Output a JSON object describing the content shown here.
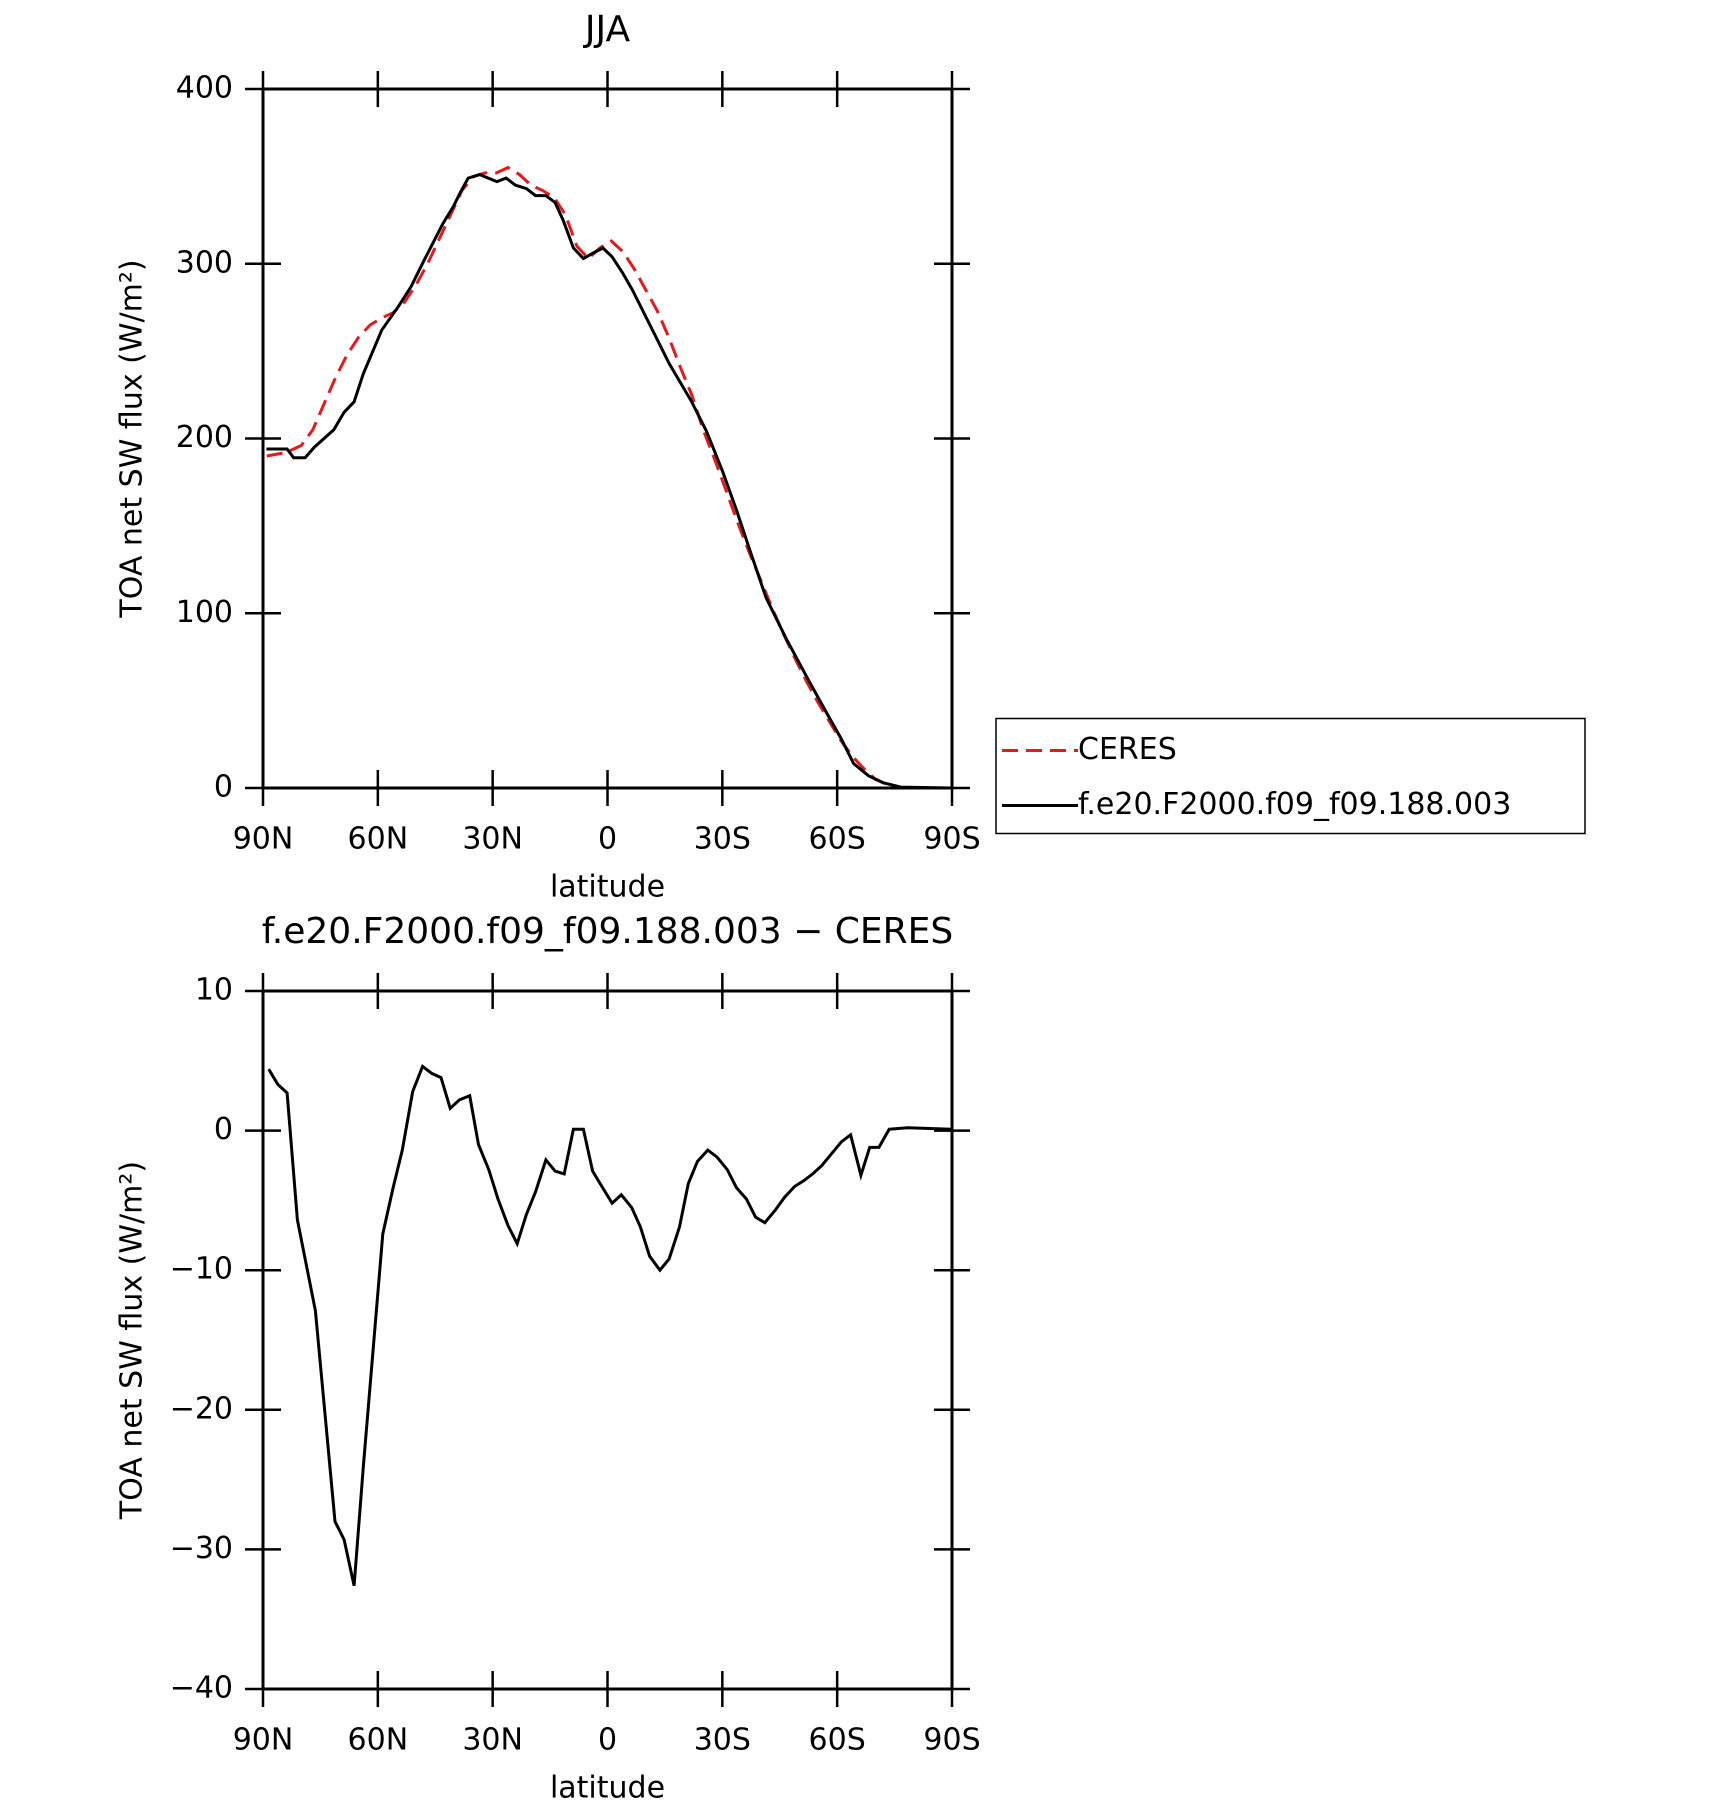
{
  "chart_data": [
    {
      "type": "line",
      "title": "JJA",
      "xlabel": "latitude",
      "ylabel": "TOA net SW flux (W/m²)",
      "xlim": [
        90,
        -90
      ],
      "ylim": [
        0,
        400
      ],
      "xticks": [
        {
          "value": 90,
          "label": "90N"
        },
        {
          "value": 60,
          "label": "60N"
        },
        {
          "value": 30,
          "label": "30N"
        },
        0,
        {
          "value": -30,
          "label": "30S"
        },
        {
          "value": -60,
          "label": "60S"
        },
        {
          "value": -90,
          "label": "90S"
        }
      ],
      "yticks": [
        0,
        100,
        200,
        300,
        400
      ],
      "legend": "right",
      "series": [
        {
          "name": "CERES",
          "color": "#e41a1c",
          "style": "dashed",
          "x": [
            89,
            84,
            80,
            77,
            74,
            71,
            68,
            65,
            62,
            59,
            56,
            53,
            50,
            47,
            44,
            41,
            38,
            35,
            32,
            29,
            26,
            23,
            20,
            17,
            14,
            11,
            8,
            5,
            2,
            -1,
            -4,
            -7,
            -10,
            -13,
            -16,
            -19,
            -22,
            -25,
            -28,
            -31,
            -34,
            -37,
            -40,
            -43,
            -46,
            -49,
            -52,
            -55,
            -58,
            -61,
            -64,
            -67,
            -70,
            -73,
            -76,
            -79,
            -90
          ],
          "values": [
            190,
            192,
            196,
            205,
            220,
            235,
            248,
            258,
            265,
            269,
            272,
            278,
            288,
            300,
            314,
            328,
            342,
            350,
            352,
            352,
            355,
            351,
            345,
            342,
            338,
            328,
            310,
            303,
            309,
            313,
            307,
            297,
            285,
            273,
            258,
            241,
            225,
            205,
            188,
            170,
            152,
            135,
            119,
            103,
            88,
            74,
            61,
            49,
            38,
            27,
            18,
            11,
            5,
            2,
            0.5,
            0,
            0
          ]
        },
        {
          "name": "f.e20.F2000.f09_f09.188.003",
          "color": "#000000",
          "style": "solid",
          "x": [
            89.1,
            83.7,
            82,
            79,
            76.6,
            71.5,
            68.8,
            66.2,
            63.8,
            59,
            54.5,
            51.3,
            47.9,
            43,
            40.2,
            38.4,
            36.4,
            33.4,
            28.9,
            26.5,
            24.1,
            21.2,
            18.8,
            16.1,
            13.7,
            11.6,
            8.9,
            6.3,
            3.9,
            1.2,
            -1.2,
            -3.9,
            -6.5,
            -11.3,
            -16.1,
            -22,
            -25.9,
            -30.1,
            -33.7,
            -37.2,
            -41.4,
            -46.8,
            -52.7,
            -57.5,
            -61.1,
            -64.3,
            -68.2,
            -72.1,
            -76.6,
            -90
          ],
          "values": [
            194,
            194,
            189,
            189,
            195,
            205,
            215,
            221,
            237,
            262,
            276,
            287,
            302,
            323,
            333,
            341,
            349,
            351,
            347,
            349,
            345,
            343,
            339,
            339,
            335,
            325,
            309,
            303,
            306,
            309,
            304,
            295,
            285,
            264,
            243,
            221,
            204,
            181,
            159,
            136,
            109,
            85,
            61,
            42,
            28,
            14,
            7,
            3,
            0.5,
            0
          ]
        }
      ]
    },
    {
      "type": "line",
      "title": "f.e20.F2000.f09_f09.188.003 − CERES",
      "xlabel": "latitude",
      "ylabel": "TOA net SW flux (W/m²)",
      "xlim": [
        90,
        -90
      ],
      "ylim": [
        -40,
        10
      ],
      "xticks": [
        {
          "value": 90,
          "label": "90N"
        },
        {
          "value": 60,
          "label": "60N"
        },
        {
          "value": 30,
          "label": "30N"
        },
        0,
        {
          "value": -30,
          "label": "30S"
        },
        {
          "value": -60,
          "label": "60S"
        },
        {
          "value": -90,
          "label": "90S"
        }
      ],
      "yticks": [
        {
          "value": 10,
          "label": "10"
        },
        0,
        {
          "value": -10,
          "label": "−10"
        },
        {
          "value": -20,
          "label": "−20"
        },
        {
          "value": -30,
          "label": "−30"
        },
        {
          "value": -40,
          "label": "−40"
        }
      ],
      "series": [
        {
          "color": "#000000",
          "style": "solid",
          "x": [
            88.5,
            86.1,
            83.7,
            81,
            76.3,
            71.2,
            68.8,
            66.2,
            63.8,
            58.7,
            56,
            53.6,
            50.9,
            48.3,
            45.9,
            43.5,
            41.1,
            38.7,
            36,
            33.7,
            31,
            28.6,
            26,
            23.6,
            21.2,
            18.8,
            16.1,
            13.7,
            11.3,
            8.9,
            6.3,
            3.9,
            1.5,
            -1.2,
            -3.6,
            -6.3,
            -8.6,
            -11,
            -13.7,
            -16.1,
            -18.8,
            -21.1,
            -23.5,
            -26.2,
            -28.6,
            -31.3,
            -33.7,
            -36.3,
            -38.7,
            -41.1,
            -43.8,
            -46.2,
            -48.9,
            -51.2,
            -53.6,
            -56,
            -58.7,
            -61.1,
            -63.5,
            -66.2,
            -68.5,
            -70.9,
            -73.6,
            -78.4,
            -90
          ],
          "values": [
            4.4,
            3.3,
            2.7,
            -6.4,
            -12.9,
            -28,
            -29.3,
            -32.6,
            -24.1,
            -7.4,
            -4.1,
            -1.4,
            2.8,
            4.6,
            4.1,
            3.8,
            1.6,
            2.2,
            2.5,
            -1,
            -2.8,
            -4.9,
            -6.8,
            -8.1,
            -6,
            -4.4,
            -2.1,
            -2.9,
            -3.1,
            0.1,
            0.1,
            -2.9,
            -4,
            -5.2,
            -4.6,
            -5.5,
            -6.9,
            -9,
            -10,
            -9.2,
            -6.9,
            -3.8,
            -2.2,
            -1.4,
            -1.9,
            -2.8,
            -4.1,
            -4.9,
            -6.2,
            -6.6,
            -5.7,
            -4.8,
            -4,
            -3.6,
            -3.1,
            -2.5,
            -1.6,
            -0.8,
            -0.3,
            -3.2,
            -1.2,
            -1.2,
            0.1,
            0.2,
            0.1
          ]
        }
      ]
    }
  ]
}
